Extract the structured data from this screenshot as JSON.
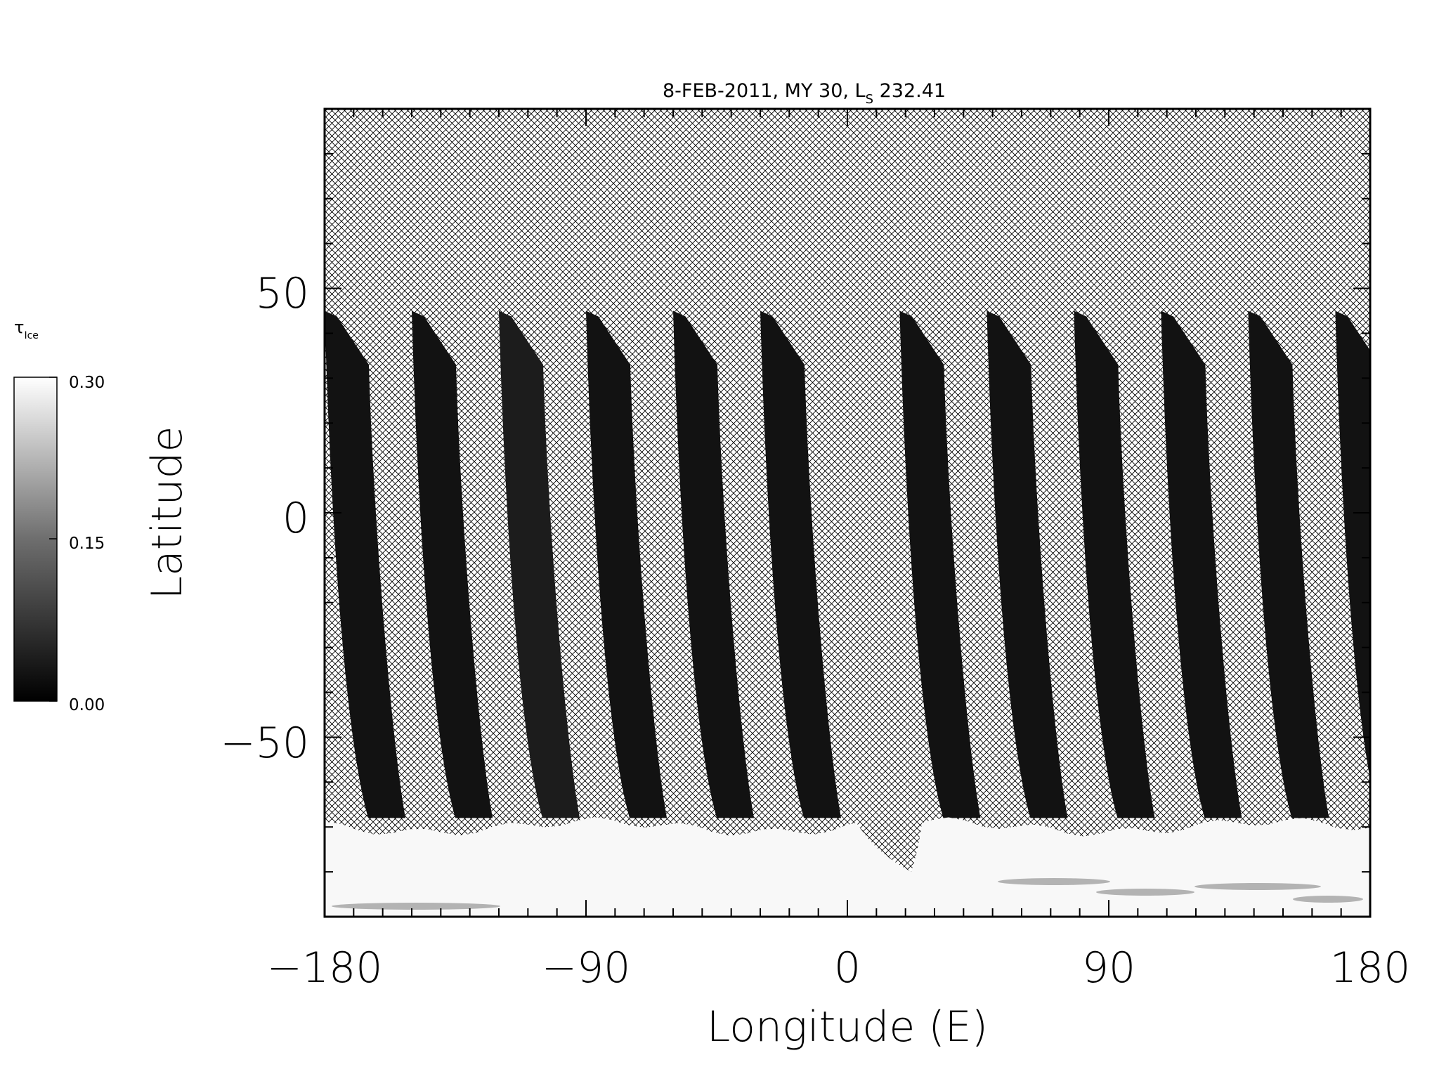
{
  "chart_data": {
    "type": "heatmap",
    "title_main": "8-FEB-2011, MY 30,  L",
    "title_sub": "S",
    "title_value": " 232.41",
    "xlabel": "Longitude (E)",
    "ylabel": "Latitude",
    "xlim": [
      -180,
      180
    ],
    "ylim": [
      -90,
      90
    ],
    "xticks": [
      -180,
      -90,
      0,
      90,
      180
    ],
    "xtick_labels": [
      "−180",
      "−90",
      "0",
      "90",
      "180"
    ],
    "yticks": [
      -50,
      0,
      50
    ],
    "ytick_labels": [
      "−50",
      "0",
      "50"
    ],
    "no_data_fill": "crosshatch",
    "colorbar": {
      "label_main": "τ",
      "label_sub": "Ice",
      "min": 0.0,
      "max": 0.3,
      "ticks": [
        0.0,
        0.15,
        0.3
      ],
      "tick_labels": [
        "0.00",
        "0.15",
        "0.30"
      ],
      "colormap": "grayscale",
      "low_color": "#000000",
      "high_color": "#ffffff"
    },
    "swaths": [
      {
        "lon_north": -180,
        "lat_north": 45
      },
      {
        "lon_north": -150,
        "lat_north": 45
      },
      {
        "lon_north": -120,
        "lat_north": 45
      },
      {
        "lon_north": -90,
        "lat_north": 45
      },
      {
        "lon_north": -60,
        "lat_north": 45
      },
      {
        "lon_north": -30,
        "lat_north": 45
      },
      {
        "lon_north": 18,
        "lat_north": 45
      },
      {
        "lon_north": 48,
        "lat_north": 45
      },
      {
        "lon_north": 78,
        "lat_north": 45
      },
      {
        "lon_north": 108,
        "lat_north": 45
      },
      {
        "lon_north": 138,
        "lat_north": 45
      },
      {
        "lon_north": 168,
        "lat_north": 45
      }
    ],
    "south_polar_ice_band": {
      "lat_min": -90,
      "lat_max": -70,
      "tau_ice": 0.3
    }
  }
}
